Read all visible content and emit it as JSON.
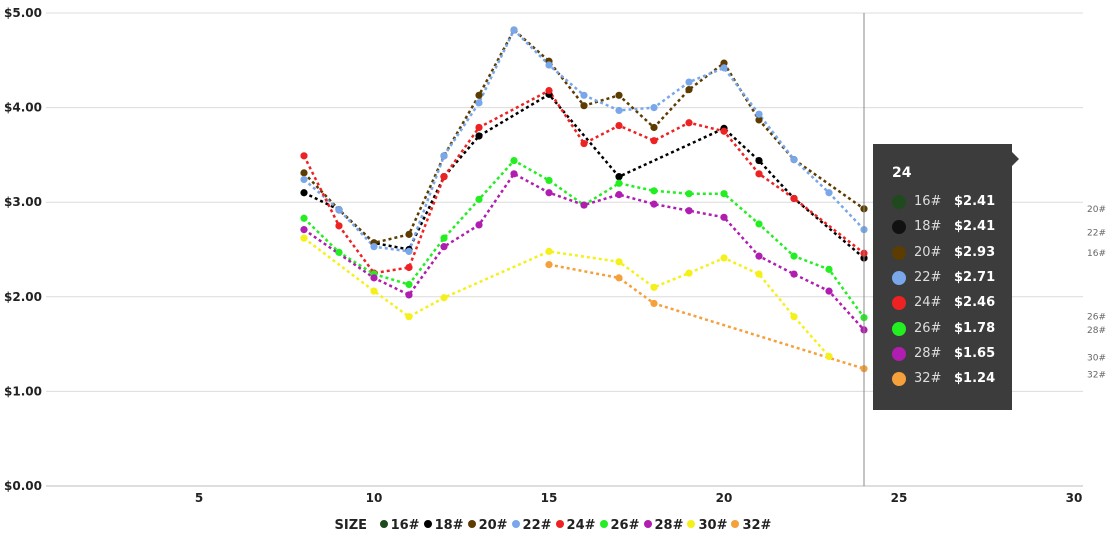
{
  "chart_data": {
    "type": "line",
    "xlim": [
      0,
      30
    ],
    "ylim": [
      0,
      5
    ],
    "x_ticks": [
      5,
      10,
      15,
      20,
      25,
      30
    ],
    "y_ticks": [
      "$0.00",
      "$1.00",
      "$2.00",
      "$3.00",
      "$4.00",
      "$5.00"
    ],
    "legend": {
      "title": "SIZE",
      "position": "bottom"
    },
    "grid": "horizontal",
    "cursor_x": 24,
    "series": [
      {
        "name": "16#",
        "color": "#1e4a1e",
        "points": [
          [
            24,
            2.41
          ]
        ]
      },
      {
        "name": "18#",
        "color": "#000000",
        "points": [
          [
            8,
            3.1
          ],
          [
            9,
            2.92
          ],
          [
            10,
            2.57
          ],
          [
            11,
            2.5
          ],
          [
            12,
            3.27
          ],
          [
            13,
            3.7
          ],
          [
            15,
            4.14
          ],
          [
            17,
            3.27
          ],
          [
            20,
            3.78
          ],
          [
            21,
            3.44
          ],
          [
            22,
            3.04
          ],
          [
            24,
            2.41
          ]
        ]
      },
      {
        "name": "20#",
        "color": "#5c3c00",
        "points": [
          [
            8,
            3.31
          ],
          [
            9,
            2.92
          ],
          [
            10,
            2.57
          ],
          [
            11,
            2.66
          ],
          [
            12,
            3.49
          ],
          [
            13,
            4.13
          ],
          [
            14,
            4.82
          ],
          [
            15,
            4.49
          ],
          [
            16,
            4.02
          ],
          [
            17,
            4.13
          ],
          [
            18,
            3.79
          ],
          [
            19,
            4.19
          ],
          [
            20,
            4.47
          ],
          [
            21,
            3.87
          ],
          [
            22,
            3.45
          ],
          [
            24,
            2.93
          ]
        ]
      },
      {
        "name": "22#",
        "color": "#79a7ea",
        "points": [
          [
            8,
            3.24
          ],
          [
            9,
            2.92
          ],
          [
            10,
            2.53
          ],
          [
            11,
            2.48
          ],
          [
            12,
            3.49
          ],
          [
            13,
            4.05
          ],
          [
            14,
            4.82
          ],
          [
            15,
            4.45
          ],
          [
            16,
            4.13
          ],
          [
            17,
            3.97
          ],
          [
            18,
            4.0
          ],
          [
            19,
            4.27
          ],
          [
            20,
            4.42
          ],
          [
            21,
            3.93
          ],
          [
            22,
            3.45
          ],
          [
            23,
            3.1
          ],
          [
            24,
            2.71
          ]
        ]
      },
      {
        "name": "24#",
        "color": "#ee2222",
        "points": [
          [
            8,
            3.49
          ],
          [
            9,
            2.75
          ],
          [
            10,
            2.25
          ],
          [
            11,
            2.31
          ],
          [
            12,
            3.27
          ],
          [
            13,
            3.79
          ],
          [
            15,
            4.18
          ],
          [
            16,
            3.62
          ],
          [
            17,
            3.81
          ],
          [
            18,
            3.65
          ],
          [
            19,
            3.84
          ],
          [
            20,
            3.75
          ],
          [
            21,
            3.3
          ],
          [
            22,
            3.04
          ],
          [
            24,
            2.46
          ]
        ]
      },
      {
        "name": "26#",
        "color": "#22ee22",
        "points": [
          [
            8,
            2.83
          ],
          [
            9,
            2.47
          ],
          [
            10,
            2.24
          ],
          [
            11,
            2.13
          ],
          [
            12,
            2.62
          ],
          [
            13,
            3.03
          ],
          [
            14,
            3.44
          ],
          [
            15,
            3.23
          ],
          [
            16,
            2.97
          ],
          [
            17,
            3.2
          ],
          [
            18,
            3.12
          ],
          [
            19,
            3.09
          ],
          [
            20,
            3.09
          ],
          [
            21,
            2.77
          ],
          [
            22,
            2.43
          ],
          [
            23,
            2.29
          ],
          [
            24,
            1.78
          ]
        ]
      },
      {
        "name": "28#",
        "color": "#b01eb0",
        "points": [
          [
            8,
            2.71
          ],
          [
            10,
            2.2
          ],
          [
            11,
            2.02
          ],
          [
            12,
            2.53
          ],
          [
            13,
            2.76
          ],
          [
            14,
            3.3
          ],
          [
            15,
            3.1
          ],
          [
            16,
            2.97
          ],
          [
            17,
            3.08
          ],
          [
            18,
            2.98
          ],
          [
            19,
            2.91
          ],
          [
            20,
            2.84
          ],
          [
            21,
            2.43
          ],
          [
            22,
            2.24
          ],
          [
            23,
            2.06
          ],
          [
            24,
            1.65
          ]
        ]
      },
      {
        "name": "30#",
        "color": "#f5f019",
        "points": [
          [
            8,
            2.62
          ],
          [
            10,
            2.06
          ],
          [
            11,
            1.79
          ],
          [
            12,
            1.99
          ],
          [
            15,
            2.48
          ],
          [
            17,
            2.37
          ],
          [
            18,
            2.1
          ],
          [
            19,
            2.25
          ],
          [
            20,
            2.41
          ],
          [
            21,
            2.24
          ],
          [
            22,
            1.79
          ],
          [
            23,
            1.37
          ]
        ]
      },
      {
        "name": "32#",
        "color": "#f5a03a",
        "points": [
          [
            15,
            2.34
          ],
          [
            17,
            2.2
          ],
          [
            18,
            1.93
          ],
          [
            24,
            1.24
          ]
        ]
      }
    ],
    "end_labels": [
      "20#",
      "22#",
      "16#",
      "26#",
      "28#",
      "30#",
      "32#"
    ]
  },
  "tooltip": {
    "title": "24",
    "rows": [
      {
        "name": "16#",
        "value": "$2.41",
        "color": "#1e4a1e"
      },
      {
        "name": "18#",
        "value": "$2.41",
        "color": "#111111"
      },
      {
        "name": "20#",
        "value": "$2.93",
        "color": "#5c3c00"
      },
      {
        "name": "22#",
        "value": "$2.71",
        "color": "#79a7ea"
      },
      {
        "name": "24#",
        "value": "$2.46",
        "color": "#ee2222"
      },
      {
        "name": "26#",
        "value": "$1.78",
        "color": "#22ee22"
      },
      {
        "name": "28#",
        "value": "$1.65",
        "color": "#b01eb0"
      },
      {
        "name": "32#",
        "value": "$1.24",
        "color": "#f5a03a"
      }
    ]
  }
}
